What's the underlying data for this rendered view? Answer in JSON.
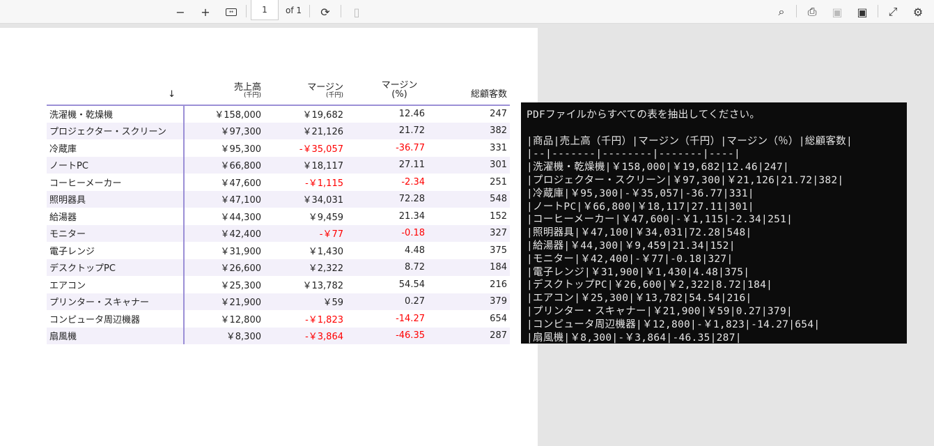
{
  "toolbar": {
    "page": "1",
    "of": "of 1",
    "icons": [
      "minus-icon",
      "plus-icon",
      "fit-width-icon",
      "rotate-icon",
      "two-page-icon",
      "search-icon",
      "print-icon",
      "save-icon",
      "save-as-icon",
      "fullscreen-icon",
      "settings-icon"
    ]
  },
  "table": {
    "sort_indicator": "↓",
    "headers": {
      "sales": "売上高",
      "sales_unit": "(千円)",
      "margin": "マージン",
      "margin_unit": "(千円)",
      "margin_pct": "マージン",
      "margin_pct_unit": "(%)",
      "customers": "総顧客数"
    },
    "rows": [
      [
        "洗濯機・乾燥機",
        "￥158,000",
        "￥19,682",
        "12.46",
        "247"
      ],
      [
        "プロジェクター・スクリーン",
        "￥97,300",
        "￥21,126",
        "21.72",
        "382"
      ],
      [
        "冷蔵庫",
        "￥95,300",
        "-￥35,057",
        "-36.77",
        "331"
      ],
      [
        "ノートPC",
        "￥66,800",
        "￥18,117",
        "27.11",
        "301"
      ],
      [
        "コーヒーメーカー",
        "￥47,600",
        "-￥1,115",
        "-2.34",
        "251"
      ],
      [
        "照明器具",
        "￥47,100",
        "￥34,031",
        "72.28",
        "548"
      ],
      [
        "給湯器",
        "￥44,300",
        "￥9,459",
        "21.34",
        "152"
      ],
      [
        "モニター",
        "￥42,400",
        "-￥77",
        "-0.18",
        "327"
      ],
      [
        "電子レンジ",
        "￥31,900",
        "￥1,430",
        "4.48",
        "375"
      ],
      [
        "デスクトップPC",
        "￥26,600",
        "￥2,322",
        "8.72",
        "184"
      ],
      [
        "エアコン",
        "￥25,300",
        "￥13,782",
        "54.54",
        "216"
      ],
      [
        "プリンター・スキャナー",
        "￥21,900",
        "￥59",
        "0.27",
        "379"
      ],
      [
        "コンピュータ周辺機器",
        "￥12,800",
        "-￥1,823",
        "-14.27",
        "654"
      ],
      [
        "扇風機",
        "￥8,300",
        "-￥3,864",
        "-46.35",
        "287"
      ]
    ],
    "negative_color": "#ff0000"
  },
  "terminal": {
    "lines": [
      "PDFファイルからすべての表を抽出してください。",
      "",
      "|商品|売上高（千円）|マージン（千円）|マージン（％）|総顧客数|",
      "|--|-------|--------|-------|----|",
      "|洗濯機・乾燥機|￥158,000|￥19,682|12.46|247|",
      "|プロジェクター・スクリーン|￥97,300|￥21,126|21.72|382|",
      "|冷蔵庫|￥95,300|-￥35,057|-36.77|331|",
      "|ノートPC|￥66,800|￥18,117|27.11|301|",
      "|コーヒーメーカー|￥47,600|-￥1,115|-2.34|251|",
      "|照明器具|￥47,100|￥34,031|72.28|548|",
      "|給湯器|￥44,300|￥9,459|21.34|152|",
      "|モニター|￥42,400|-￥77|-0.18|327|",
      "|電子レンジ|￥31,900|￥1,430|4.48|375|",
      "|デスクトップPC|￥26,600|￥2,322|8.72|184|",
      "|エアコン|￥25,300|￥13,782|54.54|216|",
      "|プリンター・スキャナー|￥21,900|￥59|0.27|379|",
      "|コンピュータ周辺機器|￥12,800|-￥1,823|-14.27|654|",
      "|扇風機|￥8,300|-￥3,864|-46.35|287|"
    ]
  }
}
